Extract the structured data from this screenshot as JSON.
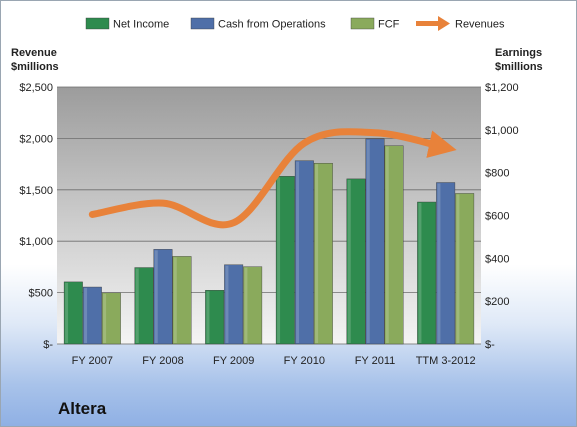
{
  "chart_data": {
    "type": "bar",
    "categories": [
      "FY 2007",
      "FY 2008",
      "FY 2009",
      "FY 2010",
      "FY 2011",
      "TTM 3-2012"
    ],
    "series": [
      {
        "name": "Net Income",
        "axis": "right",
        "color": "#2e8b4e",
        "values": [
          290,
          357,
          251,
          783,
          771,
          663
        ]
      },
      {
        "name": "Cash from Operations",
        "axis": "right",
        "color": "#4f6fa8",
        "values": [
          266,
          442,
          370,
          856,
          958,
          754
        ]
      },
      {
        "name": "FCF",
        "axis": "right",
        "color": "#8aaa5c",
        "values": [
          239,
          409,
          361,
          844,
          926,
          703
        ]
      }
    ],
    "line_series": {
      "name": "Revenues",
      "axis": "left",
      "color": "#e8823a",
      "values": [
        1260,
        1370,
        1180,
        1955,
        2055,
        1910
      ]
    },
    "left_axis": {
      "title_line1": "Revenue",
      "title_line2": "$millions",
      "range": [
        0,
        2500
      ],
      "tick_labels": [
        "$-",
        "$500",
        "$1,000",
        "$1,500",
        "$2,000",
        "$2,500"
      ]
    },
    "right_axis": {
      "title_line1": "Earnings",
      "title_line2": "$millions",
      "range": [
        0,
        1200
      ],
      "tick_labels": [
        "$-",
        "$200",
        "$400",
        "$600",
        "$800",
        "$1,000",
        "$1,200"
      ]
    },
    "legend_position": "top",
    "grid": true,
    "annotation": "Altera"
  }
}
